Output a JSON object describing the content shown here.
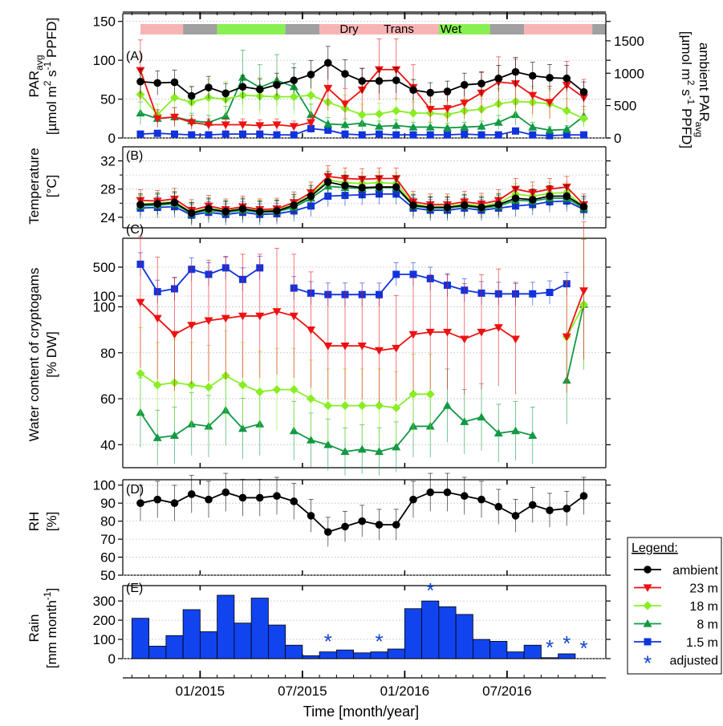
{
  "figure": {
    "xlabel": "Time [month/year]",
    "x_ticks": [
      "01/2015",
      "07/2015",
      "01/2016",
      "07/2016"
    ],
    "x_tick_positions": [
      "2015-01-01",
      "2015-07-01",
      "2016-01-01",
      "2016-07-01"
    ],
    "months": [
      "2014-09",
      "2014-10",
      "2014-11",
      "2014-12",
      "2015-01",
      "2015-02",
      "2015-03",
      "2015-04",
      "2015-05",
      "2015-06",
      "2015-07",
      "2015-08",
      "2015-09",
      "2015-10",
      "2015-11",
      "2015-12",
      "2016-01",
      "2016-02",
      "2016-03",
      "2016-04",
      "2016-05",
      "2016-06",
      "2016-07",
      "2016-08",
      "2016-09",
      "2016-10",
      "2016-11",
      "2016-12"
    ],
    "season_bar": {
      "labels": [
        "Dry",
        "Trans",
        "Wet"
      ],
      "colors": {
        "dry": "#f8b4b4",
        "trans": "#a0a0a0",
        "wet": "#88f050"
      },
      "segments": [
        {
          "type": "dry",
          "from": "2014-09",
          "to": "2014-11"
        },
        {
          "type": "trans",
          "from": "2014-12",
          "to": "2015-01"
        },
        {
          "type": "wet",
          "from": "2015-02",
          "to": "2015-05"
        },
        {
          "type": "trans",
          "from": "2015-06",
          "to": "2015-07"
        },
        {
          "type": "dry",
          "from": "2015-08",
          "to": "2016-02"
        },
        {
          "type": "wet",
          "from": "2016-03",
          "to": "2016-05"
        },
        {
          "type": "trans",
          "from": "2016-06",
          "to": "2016-07"
        },
        {
          "type": "dry",
          "from": "2016-08",
          "to": "2016-11"
        },
        {
          "type": "trans",
          "from": "2016-12",
          "to": "2016-12"
        }
      ]
    },
    "legend": {
      "title": "Legend:",
      "items": [
        {
          "label": "ambient",
          "color": "#000000",
          "marker": "circle"
        },
        {
          "label": "23 m",
          "color": "#ee1111",
          "marker": "triangle-down"
        },
        {
          "label": "18 m",
          "color": "#88ee22",
          "marker": "diamond"
        },
        {
          "label": "8 m",
          "color": "#119944",
          "marker": "triangle-up"
        },
        {
          "label": "1.5 m",
          "color": "#1133dd",
          "marker": "square"
        },
        {
          "label": "adjusted",
          "color": "#1144cc",
          "marker": "asterisk"
        }
      ]
    }
  },
  "chart_data": [
    {
      "panel": "(A)",
      "type": "line",
      "ylabel": "PAR_avg [µmol m^-2 s^-1 PPFD]",
      "ylabel_lines": [
        "PAR",
        "avg",
        "2",
        "-1",
        "[µmol m",
        "s",
        "PPFD]"
      ],
      "ylim": [
        0,
        160
      ],
      "yticks": [
        0,
        50,
        100,
        150
      ],
      "y2label": "ambient PAR_avg [µmol m^-2 s^-1 PPFD]",
      "y2label_lines": [
        "ambient PAR",
        "avg",
        "2",
        "-1",
        "[µmol m",
        "s",
        "PPFD]"
      ],
      "y2lim": [
        0,
        1920
      ],
      "y2ticks": [
        0,
        500,
        1000,
        1500
      ],
      "series": [
        {
          "name": "ambient",
          "axis": "right",
          "values": [
            870,
            850,
            860,
            650,
            780,
            690,
            790,
            750,
            820,
            890,
            980,
            1160,
            990,
            880,
            880,
            890,
            740,
            700,
            720,
            820,
            840,
            920,
            1020,
            960,
            930,
            920,
            710,
            null
          ]
        },
        {
          "name": "23 m",
          "values": [
            87,
            25,
            27,
            20,
            17,
            17,
            17,
            16,
            17,
            15,
            20,
            64,
            44,
            62,
            88,
            88,
            65,
            37,
            38,
            45,
            58,
            72,
            70,
            55,
            46,
            68,
            52,
            null
          ]
        },
        {
          "name": "18 m",
          "values": [
            56,
            30,
            52,
            46,
            52,
            50,
            55,
            54,
            53,
            53,
            55,
            46,
            38,
            30,
            31,
            35,
            32,
            32,
            30,
            35,
            37,
            44,
            47,
            46,
            44,
            35,
            25,
            null
          ]
        },
        {
          "name": "8 m",
          "values": [
            32,
            25,
            27,
            22,
            20,
            28,
            78,
            65,
            74,
            66,
            30,
            18,
            17,
            19,
            15,
            16,
            14,
            14,
            13,
            14,
            15,
            20,
            30,
            14,
            10,
            11,
            28,
            null
          ]
        },
        {
          "name": "1.5 m",
          "values": [
            5,
            6,
            5,
            4,
            4,
            5,
            5,
            5,
            4,
            4,
            12,
            10,
            5,
            4,
            5,
            4,
            4,
            4,
            4,
            5,
            4,
            4,
            9,
            4,
            3,
            4,
            4,
            null
          ]
        }
      ]
    },
    {
      "panel": "(B)",
      "type": "line",
      "ylabel": "Temperature [°C]",
      "ylim": [
        22.5,
        34
      ],
      "yticks": [
        24,
        28,
        32
      ],
      "minor_yticks": [
        26,
        30
      ],
      "series": [
        {
          "name": "ambient",
          "values": [
            25.8,
            25.9,
            26.1,
            24.6,
            25.2,
            24.8,
            25.2,
            24.8,
            24.9,
            25.7,
            27.0,
            29.0,
            28.5,
            28.2,
            28.3,
            28.3,
            25.7,
            25.4,
            25.4,
            25.7,
            25.4,
            25.8,
            26.7,
            26.5,
            27.0,
            27.0,
            25.5,
            null
          ]
        },
        {
          "name": "23 m",
          "values": [
            26.4,
            26.3,
            26.6,
            25.0,
            25.6,
            25.1,
            25.5,
            25.1,
            25.2,
            26.1,
            27.5,
            29.8,
            29.5,
            29.4,
            29.5,
            29.5,
            26.2,
            25.8,
            25.8,
            26.2,
            25.9,
            26.4,
            28.0,
            27.5,
            28.0,
            28.3,
            25.8,
            null
          ]
        },
        {
          "name": "18 m",
          "values": [
            25.9,
            26.0,
            26.2,
            24.7,
            25.3,
            24.9,
            25.2,
            24.9,
            25.0,
            25.8,
            27.2,
            29.3,
            28.9,
            28.8,
            28.9,
            28.8,
            25.9,
            25.5,
            25.5,
            25.9,
            25.6,
            26.0,
            27.3,
            27.0,
            27.4,
            27.5,
            25.5,
            null
          ]
        },
        {
          "name": "8 m",
          "values": [
            25.6,
            25.7,
            25.9,
            24.5,
            25.0,
            24.7,
            25.0,
            24.7,
            24.8,
            25.4,
            26.7,
            28.4,
            28.2,
            28.1,
            28.2,
            28.2,
            25.6,
            25.3,
            25.3,
            25.6,
            25.3,
            25.6,
            26.4,
            26.3,
            26.7,
            26.7,
            25.3,
            null
          ]
        },
        {
          "name": "1.5 m",
          "values": [
            25.3,
            25.4,
            25.5,
            24.3,
            24.7,
            24.4,
            24.7,
            24.4,
            24.5,
            24.9,
            25.6,
            27.0,
            27.1,
            27.2,
            27.3,
            27.3,
            25.3,
            25.0,
            25.0,
            25.3,
            25.0,
            25.3,
            25.6,
            25.8,
            26.2,
            26.3,
            25.1,
            null
          ]
        }
      ]
    },
    {
      "panel": "(C)",
      "type": "line",
      "ylabel": "Water content of cryptogams [% DW]",
      "upper": {
        "ylim": [
          100,
          900
        ],
        "yticks": [
          100,
          500
        ],
        "series": [
          {
            "name": "1.5 m",
            "values": [
              540,
              160,
              200,
              470,
              400,
              490,
              330,
              490,
              null,
              210,
              140,
              120,
              120,
              120,
              120,
              400,
              400,
              340,
              250,
              180,
              140,
              130,
              130,
              130,
              150,
              270,
              null,
              null
            ]
          }
        ]
      },
      "lower": {
        "ylim": [
          30,
          104
        ],
        "yticks": [
          40,
          60,
          80,
          100
        ],
        "series": [
          {
            "name": "23 m",
            "values": [
              102,
              95,
              88,
              92,
              94,
              95,
              96,
              96,
              98,
              96,
              90,
              83,
              83,
              83,
              81,
              82,
              88,
              89,
              89,
              86,
              89,
              91,
              86,
              null,
              null,
              87,
              107,
              null
            ]
          },
          {
            "name": "18 m",
            "values": [
              71,
              66,
              67,
              66,
              65,
              70,
              66,
              63,
              64,
              64,
              60,
              57,
              57,
              57,
              57,
              56,
              62,
              62,
              null,
              null,
              null,
              null,
              null,
              null,
              null,
              87,
              101,
              null
            ]
          },
          {
            "name": "8 m",
            "values": [
              54,
              43,
              44,
              49,
              48,
              55,
              47,
              49,
              null,
              46,
              42,
              40,
              37,
              38,
              37,
              39,
              48,
              48,
              57,
              50,
              52,
              45,
              46,
              44,
              null,
              68,
              101,
              null
            ]
          }
        ]
      }
    },
    {
      "panel": "(D)",
      "type": "line",
      "ylabel": "RH [%]",
      "ylim": [
        50,
        103
      ],
      "yticks": [
        50,
        60,
        70,
        80,
        90,
        100
      ],
      "series": [
        {
          "name": "ambient",
          "values": [
            90,
            92,
            90,
            95,
            92,
            96,
            93,
            93,
            94,
            91,
            83,
            74,
            77,
            80,
            78,
            78,
            92,
            96,
            96,
            94,
            92,
            88,
            83,
            89,
            86,
            87,
            94,
            null
          ]
        }
      ]
    },
    {
      "panel": "(E)",
      "type": "bar",
      "ylabel": "Rain [mm month^-1]",
      "ylabel_lines": [
        "Rain",
        "[mm month",
        "-1",
        "]"
      ],
      "ylim": [
        0,
        380
      ],
      "yticks": [
        0,
        100,
        200,
        300
      ],
      "bar_color": "#1144ee",
      "values": [
        210,
        65,
        120,
        255,
        140,
        330,
        185,
        315,
        175,
        70,
        15,
        35,
        45,
        30,
        35,
        50,
        260,
        300,
        270,
        230,
        100,
        90,
        35,
        70,
        5,
        25,
        null,
        null
      ],
      "adjusted_months": [
        "2015-08",
        "2015-11",
        "2016-02",
        "2016-09",
        "2016-10",
        "2016-11"
      ]
    }
  ]
}
